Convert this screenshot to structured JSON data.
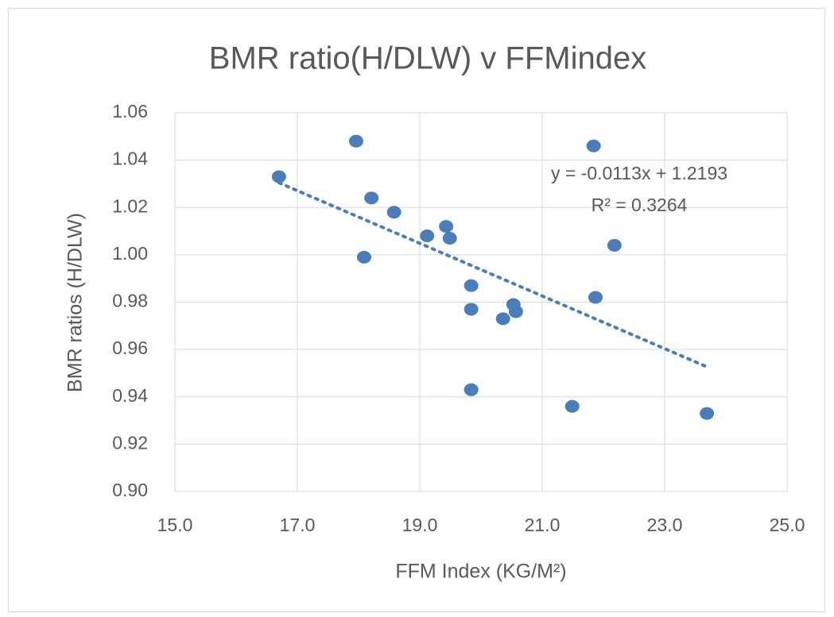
{
  "chart_data": {
    "type": "scatter",
    "title": "BMR ratio(H/DLW) v FFMindex",
    "x_label": "FFM Index (KG/M²)",
    "y_label": "BMR ratios (H/DLW)",
    "series": [
      {
        "color": "#4a7ebb",
        "x": [
          16.7,
          17.96,
          18.21,
          18.09,
          18.58,
          19.12,
          19.43,
          19.49,
          19.84,
          19.84,
          19.84,
          20.36,
          20.53,
          20.57,
          21.49,
          21.84,
          21.87,
          22.18,
          23.69
        ],
        "values": [
          1.033,
          1.048,
          1.024,
          0.999,
          1.018,
          1.008,
          1.012,
          1.007,
          0.987,
          0.977,
          0.943,
          0.973,
          0.979,
          0.976,
          0.936,
          1.046,
          0.982,
          1.004,
          0.933
        ]
      }
    ],
    "trendline": {
      "style": "dotted",
      "equation": "y = -0.0113x  + 1.2193",
      "r_squared": "R² = 0.3264"
    },
    "xlim": [
      15,
      25
    ],
    "xticks": [
      {
        "value": 15,
        "label": "15.0"
      },
      {
        "value": 17,
        "label": "17.0"
      },
      {
        "value": 19,
        "label": "19.0"
      },
      {
        "value": 21,
        "label": "21.0"
      },
      {
        "value": 23,
        "label": "23.0"
      },
      {
        "value": 25,
        "label": "25.0"
      }
    ],
    "ylim": [
      0.9,
      1.06
    ],
    "yticks": [
      {
        "value": 0.9,
        "label": "0.90"
      },
      0.92,
      0.94,
      0.96,
      0.98,
      {
        "value": 1,
        "label": "1.00"
      },
      1.02,
      1.04,
      1.06
    ],
    "grid": true
  }
}
